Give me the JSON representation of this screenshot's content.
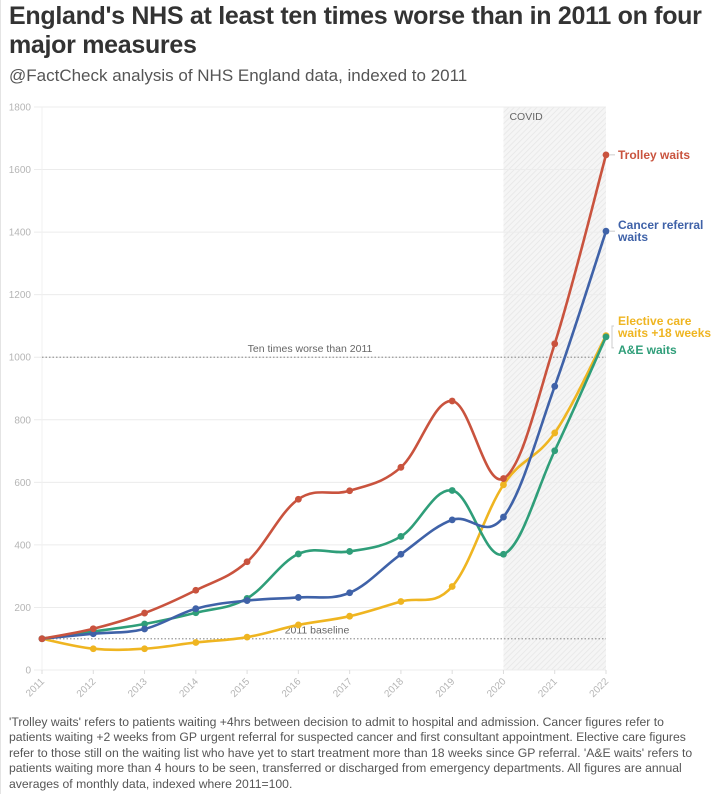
{
  "header": {
    "title": "England's NHS at least ten times worse than in 2011 on four major measures",
    "subtitle": "@FactCheck analysis of NHS England data, indexed to 2011"
  },
  "footnote": "'Trolley waits' refers to patients waiting +4hrs between decision to admit to hospital and admission. Cancer figures refer to patients waiting +2 weeks from GP urgent referral for suspected cancer and first consultant appointment. Elective care figures refer to those still on the waiting list who have yet to start treatment more than 18 weeks since GP referral. 'A&E waits' refers to patients waiting more than 4 hours to be seen, transferred or discharged from emergency departments. All figures are annual averages of monthly data, indexed where 2011=100.",
  "chart_data": {
    "type": "line",
    "title": "England's NHS at least ten times worse than in 2011 on four major measures",
    "subtitle": "@FactCheck analysis of NHS England data, indexed to 2011",
    "xlabel": "",
    "ylabel": "",
    "x": [
      "2011",
      "2012",
      "2013",
      "2014",
      "2015",
      "2016",
      "2017",
      "2018",
      "2019",
      "2020",
      "2021",
      "2022"
    ],
    "ylim": [
      0,
      1800
    ],
    "yticks": [
      0,
      200,
      400,
      600,
      800,
      1000,
      1200,
      1400,
      1600,
      1800
    ],
    "grid": true,
    "legend": "direct-labels-right",
    "series": [
      {
        "name": "Trolley waits",
        "color": "#c9533e",
        "values": [
          100,
          132,
          182,
          255,
          346,
          546,
          573,
          648,
          860,
          612,
          1043,
          1647
        ]
      },
      {
        "name": "Cancer referral waits",
        "color": "#3f62a8",
        "values": [
          100,
          116,
          131,
          196,
          222,
          232,
          247,
          370,
          480,
          489,
          907,
          1403
        ]
      },
      {
        "name": "Elective care waits +18 weeks",
        "color": "#efb521",
        "values": [
          100,
          68,
          68,
          88,
          105,
          144,
          172,
          219,
          267,
          592,
          758,
          1069
        ]
      },
      {
        "name": "A&E waits",
        "color": "#2f9e79",
        "values": [
          100,
          123,
          147,
          183,
          229,
          371,
          379,
          427,
          574,
          370,
          701,
          1065
        ]
      }
    ],
    "labels": [
      {
        "series": 0,
        "lines": [
          "Trolley waits"
        ]
      },
      {
        "series": 1,
        "lines": [
          "Cancer referral",
          "waits"
        ]
      },
      {
        "series": 2,
        "lines": [
          "Elective care",
          "waits +18 weeks"
        ]
      },
      {
        "series": 3,
        "lines": [
          "A&E waits"
        ]
      }
    ],
    "reference_lines": [
      {
        "value": 1000,
        "label": "Ten times worse than 2011"
      },
      {
        "value": 100,
        "label": "2011 baseline"
      }
    ],
    "shaded_region": {
      "from": "2020",
      "to": "2022",
      "label": "COVID"
    }
  }
}
